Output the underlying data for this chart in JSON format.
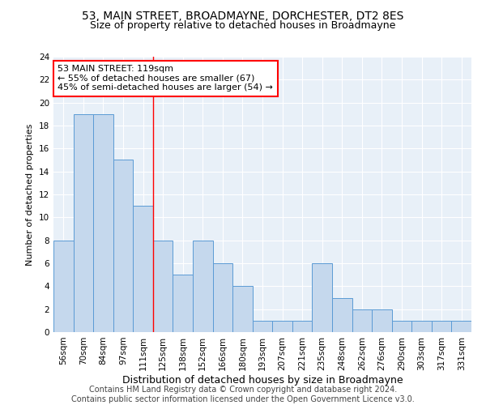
{
  "title1": "53, MAIN STREET, BROADMAYNE, DORCHESTER, DT2 8ES",
  "title2": "Size of property relative to detached houses in Broadmayne",
  "xlabel": "Distribution of detached houses by size in Broadmayne",
  "ylabel": "Number of detached properties",
  "categories": [
    "56sqm",
    "70sqm",
    "84sqm",
    "97sqm",
    "111sqm",
    "125sqm",
    "138sqm",
    "152sqm",
    "166sqm",
    "180sqm",
    "193sqm",
    "207sqm",
    "221sqm",
    "235sqm",
    "248sqm",
    "262sqm",
    "276sqm",
    "290sqm",
    "303sqm",
    "317sqm",
    "331sqm"
  ],
  "values": [
    8,
    19,
    19,
    15,
    11,
    8,
    5,
    8,
    6,
    4,
    1,
    1,
    1,
    6,
    3,
    2,
    2,
    1,
    1,
    1,
    1
  ],
  "bar_color": "#c5d8ed",
  "bar_edge_color": "#5b9bd5",
  "vline_x": 4.5,
  "vline_color": "red",
  "annotation_line1": "53 MAIN STREET: 119sqm",
  "annotation_line2": "← 55% of detached houses are smaller (67)",
  "annotation_line3": "45% of semi-detached houses are larger (54) →",
  "annotation_box_color": "white",
  "annotation_box_edge": "red",
  "ylim": [
    0,
    24
  ],
  "yticks": [
    0,
    2,
    4,
    6,
    8,
    10,
    12,
    14,
    16,
    18,
    20,
    22,
    24
  ],
  "background_color": "#e8f0f8",
  "footer_line1": "Contains HM Land Registry data © Crown copyright and database right 2024.",
  "footer_line2": "Contains public sector information licensed under the Open Government Licence v3.0.",
  "title_fontsize": 10,
  "subtitle_fontsize": 9,
  "xlabel_fontsize": 9,
  "ylabel_fontsize": 8,
  "tick_fontsize": 7.5,
  "annotation_fontsize": 8,
  "footer_fontsize": 7
}
